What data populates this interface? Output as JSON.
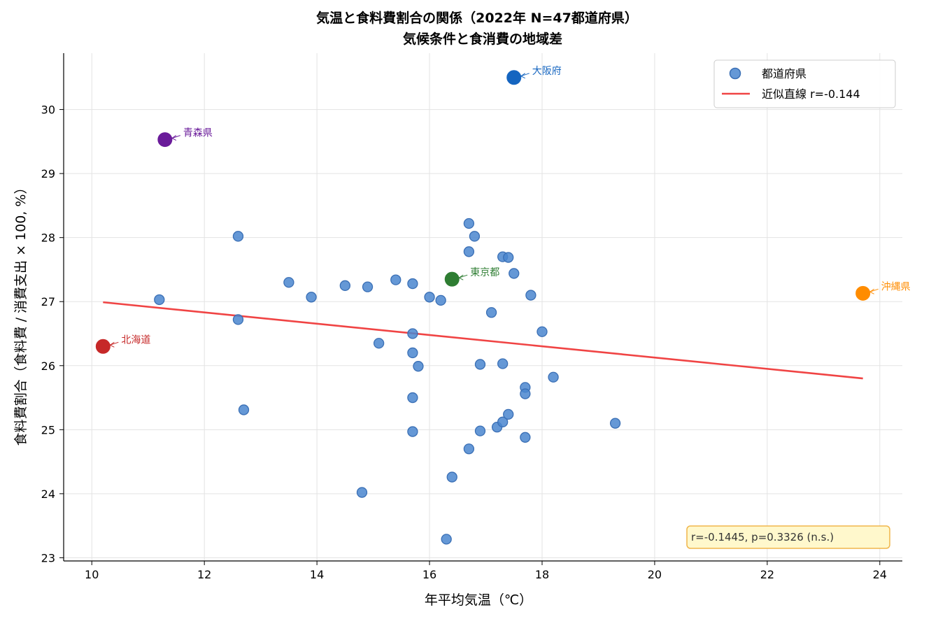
{
  "chart_data": {
    "type": "scatter",
    "title": "気温と食料費割合の関係（2022年 N=47都道府県）",
    "subtitle": "気候条件と食消費の地域差",
    "xlabel": "年平均気温（℃）",
    "ylabel": "食料費割合（食料費 / 消費支出 × 100, %）",
    "xlim": [
      9.5,
      24.4
    ],
    "ylim": [
      22.95,
      30.88
    ],
    "xticks": [
      10,
      12,
      14,
      16,
      18,
      20,
      22,
      24
    ],
    "yticks": [
      23,
      24,
      25,
      26,
      27,
      28,
      29,
      30
    ],
    "grid": true,
    "legend_position": "top-right",
    "series": [
      {
        "name": "都道府県",
        "color": "#4a86cf",
        "points": [
          {
            "x": 11.2,
            "y": 27.03
          },
          {
            "x": 12.6,
            "y": 28.02
          },
          {
            "x": 12.6,
            "y": 26.72
          },
          {
            "x": 12.7,
            "y": 25.31
          },
          {
            "x": 13.5,
            "y": 27.3
          },
          {
            "x": 13.9,
            "y": 27.07
          },
          {
            "x": 14.5,
            "y": 27.25
          },
          {
            "x": 14.8,
            "y": 24.02
          },
          {
            "x": 14.9,
            "y": 27.23
          },
          {
            "x": 15.1,
            "y": 26.35
          },
          {
            "x": 15.4,
            "y": 27.34
          },
          {
            "x": 15.7,
            "y": 27.28
          },
          {
            "x": 15.7,
            "y": 26.5
          },
          {
            "x": 15.7,
            "y": 26.2
          },
          {
            "x": 15.7,
            "y": 25.5
          },
          {
            "x": 15.7,
            "y": 24.97
          },
          {
            "x": 15.8,
            "y": 25.99
          },
          {
            "x": 16.0,
            "y": 27.07
          },
          {
            "x": 16.2,
            "y": 27.02
          },
          {
            "x": 16.3,
            "y": 23.29
          },
          {
            "x": 16.4,
            "y": 24.26
          },
          {
            "x": 16.7,
            "y": 28.22
          },
          {
            "x": 16.7,
            "y": 27.78
          },
          {
            "x": 16.7,
            "y": 24.7
          },
          {
            "x": 16.8,
            "y": 28.02
          },
          {
            "x": 16.9,
            "y": 26.02
          },
          {
            "x": 16.9,
            "y": 24.98
          },
          {
            "x": 17.1,
            "y": 26.83
          },
          {
            "x": 17.2,
            "y": 25.04
          },
          {
            "x": 17.3,
            "y": 27.7
          },
          {
            "x": 17.3,
            "y": 26.03
          },
          {
            "x": 17.3,
            "y": 25.12
          },
          {
            "x": 17.4,
            "y": 27.69
          },
          {
            "x": 17.4,
            "y": 25.24
          },
          {
            "x": 17.5,
            "y": 27.44
          },
          {
            "x": 17.7,
            "y": 25.66
          },
          {
            "x": 17.7,
            "y": 25.56
          },
          {
            "x": 17.7,
            "y": 24.88
          },
          {
            "x": 17.8,
            "y": 27.1
          },
          {
            "x": 18.0,
            "y": 26.53
          },
          {
            "x": 18.2,
            "y": 25.82
          },
          {
            "x": 19.3,
            "y": 25.1
          }
        ]
      },
      {
        "name": "近似直線 r=-0.144",
        "color": "#f04444",
        "line": [
          {
            "x": 10.2,
            "y": 26.99
          },
          {
            "x": 23.7,
            "y": 25.8
          }
        ]
      }
    ],
    "highlights": [
      {
        "label": "大阪府",
        "x": 17.5,
        "y": 30.5,
        "color": "#1565c0"
      },
      {
        "label": "青森県",
        "x": 11.3,
        "y": 29.53,
        "color": "#6a1b9a"
      },
      {
        "label": "東京都",
        "x": 16.4,
        "y": 27.35,
        "color": "#2e7d32"
      },
      {
        "label": "沖縄県",
        "x": 23.7,
        "y": 27.13,
        "color": "#ff8c00"
      },
      {
        "label": "北海道",
        "x": 10.2,
        "y": 26.3,
        "color": "#c62828"
      }
    ],
    "stats_box": {
      "text": "r=-0.1445,  p=0.3326  (n.s.)",
      "position": "bottom-right",
      "fill": "#fff8cc",
      "border": "#f0b64c"
    }
  }
}
